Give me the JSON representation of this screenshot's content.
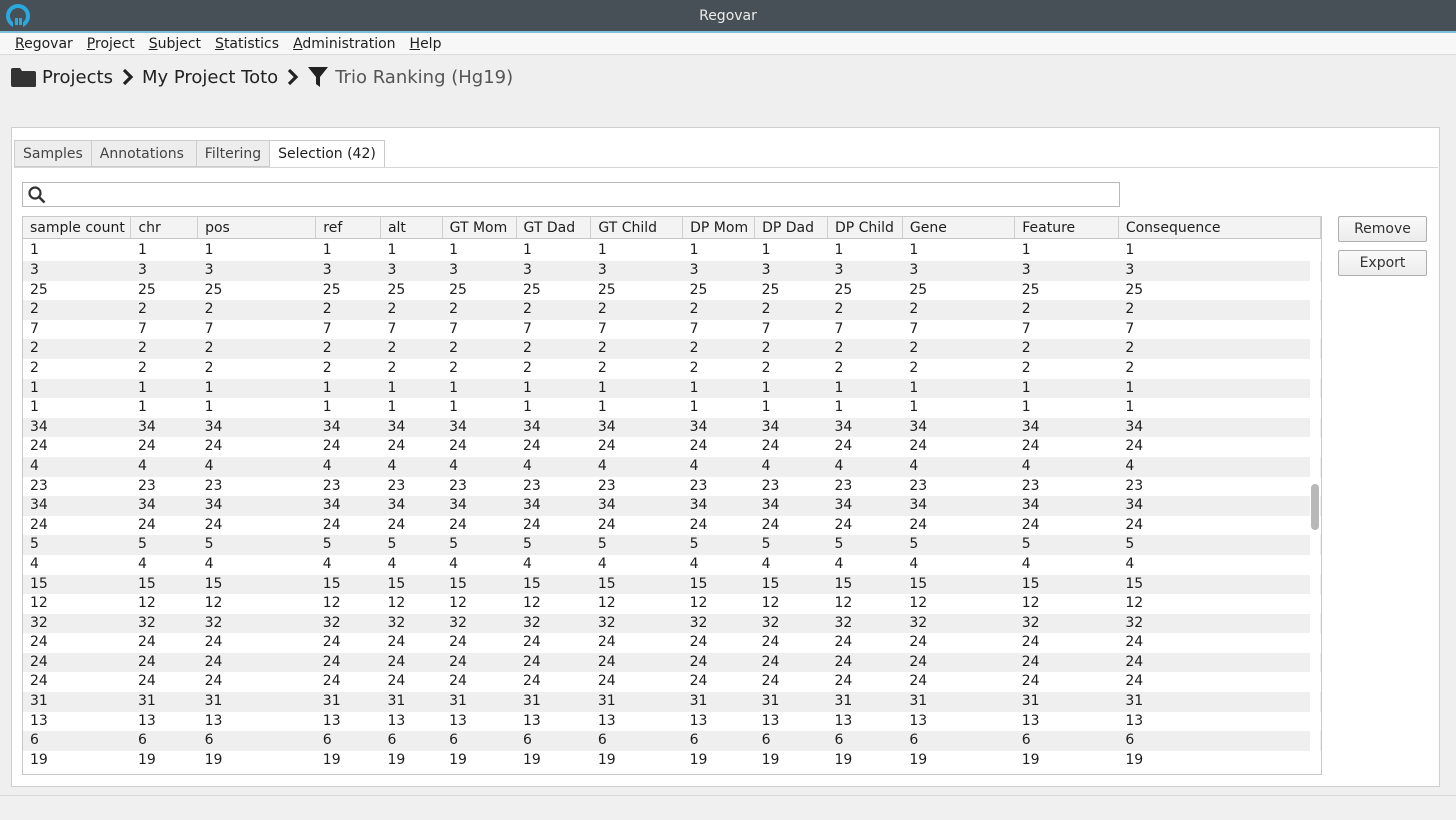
{
  "window": {
    "title": "Regovar"
  },
  "menu": [
    {
      "mnemonic": "R",
      "rest": "egovar"
    },
    {
      "mnemonic": "P",
      "rest": "roject"
    },
    {
      "mnemonic": "S",
      "rest": "ubject"
    },
    {
      "mnemonic": "S",
      "rest": "tatistics"
    },
    {
      "mnemonic": "A",
      "rest": "dministration"
    },
    {
      "mnemonic": "H",
      "rest": "elp"
    }
  ],
  "breadcrumb": {
    "projects": "Projects",
    "project": "My Project Toto",
    "analysis": "Trio Ranking (Hg19)"
  },
  "tabs": [
    "Samples",
    "Annotations",
    "Filtering",
    "Selection (42)"
  ],
  "active_tab": 3,
  "search": {
    "value": "",
    "placeholder": ""
  },
  "columns": [
    "sample count",
    "chr",
    "pos",
    "ref",
    "alt",
    "GT Mom",
    "GT Dad",
    "GT Child",
    "DP Mom",
    "DP Dad",
    "DP Child",
    "Gene",
    "Feature",
    "Consequence"
  ],
  "rows": [
    "1",
    "3",
    "25",
    "2",
    "7",
    "2",
    "2",
    "1",
    "1",
    "34",
    "24",
    "4",
    "23",
    "34",
    "24",
    "5",
    "4",
    "15",
    "12",
    "32",
    "24",
    "24",
    "24",
    "31",
    "13",
    "6",
    "19"
  ],
  "buttons": {
    "remove": "Remove",
    "export": "Export"
  },
  "colors": {
    "titlebar": "#475057",
    "accent": "#2aa9de",
    "row_alt": "#efefef"
  },
  "scrollbar": {
    "position_fraction": 0.46
  }
}
